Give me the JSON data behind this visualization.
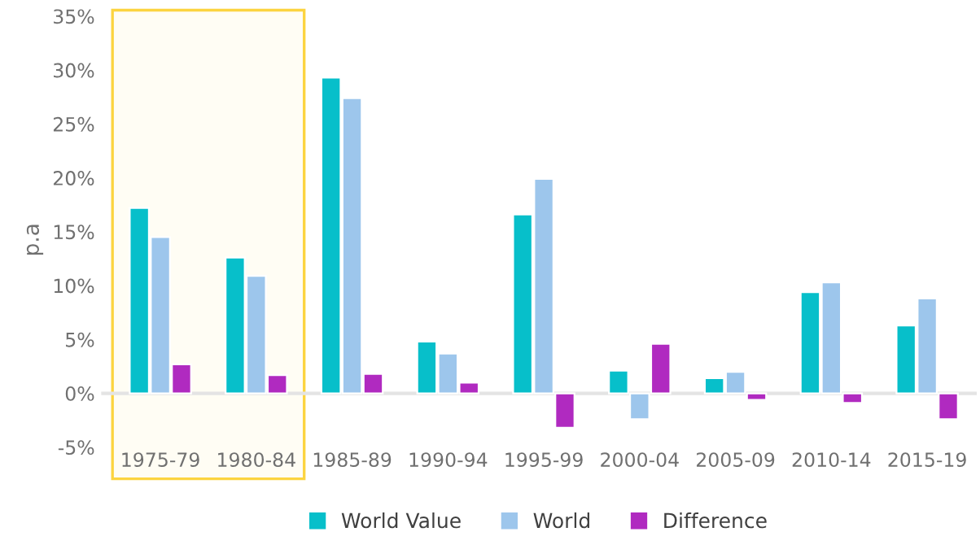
{
  "chart_data": {
    "type": "bar",
    "ylabel": "p.a",
    "categories": [
      "1975-79",
      "1980-84",
      "1985-89",
      "1990-94",
      "1995-99",
      "2000-04",
      "2005-09",
      "2010-14",
      "2015-19"
    ],
    "series": [
      {
        "name": "World Value",
        "color": "#07bfca",
        "values": [
          17.2,
          12.6,
          29.3,
          4.8,
          16.6,
          2.1,
          1.4,
          9.4,
          6.3
        ]
      },
      {
        "name": "World",
        "color": "#9dc6ec",
        "values": [
          14.5,
          10.9,
          27.4,
          3.7,
          19.9,
          -2.4,
          2.0,
          10.3,
          8.8
        ]
      },
      {
        "name": "Difference",
        "color": "#b02ac0",
        "values": [
          2.7,
          1.7,
          1.8,
          1.0,
          -3.2,
          4.6,
          -0.6,
          -0.9,
          -2.4
        ]
      }
    ],
    "ylim": [
      -7.5,
      36
    ],
    "yticks": [
      {
        "value": -5,
        "label": "-5%"
      },
      {
        "value": 0,
        "label": "0%"
      },
      {
        "value": 5,
        "label": "5%"
      },
      {
        "value": 10,
        "label": "10%"
      },
      {
        "value": 15,
        "label": "15%"
      },
      {
        "value": 20,
        "label": "20%"
      },
      {
        "value": 25,
        "label": "25%"
      },
      {
        "value": 30,
        "label": "30%"
      },
      {
        "value": 35,
        "label": "35%"
      }
    ],
    "bands": [
      {
        "axis": "x",
        "from": "1975-79",
        "to": "1980-84",
        "color": "#fcd440"
      }
    ],
    "legend": "bottom"
  }
}
